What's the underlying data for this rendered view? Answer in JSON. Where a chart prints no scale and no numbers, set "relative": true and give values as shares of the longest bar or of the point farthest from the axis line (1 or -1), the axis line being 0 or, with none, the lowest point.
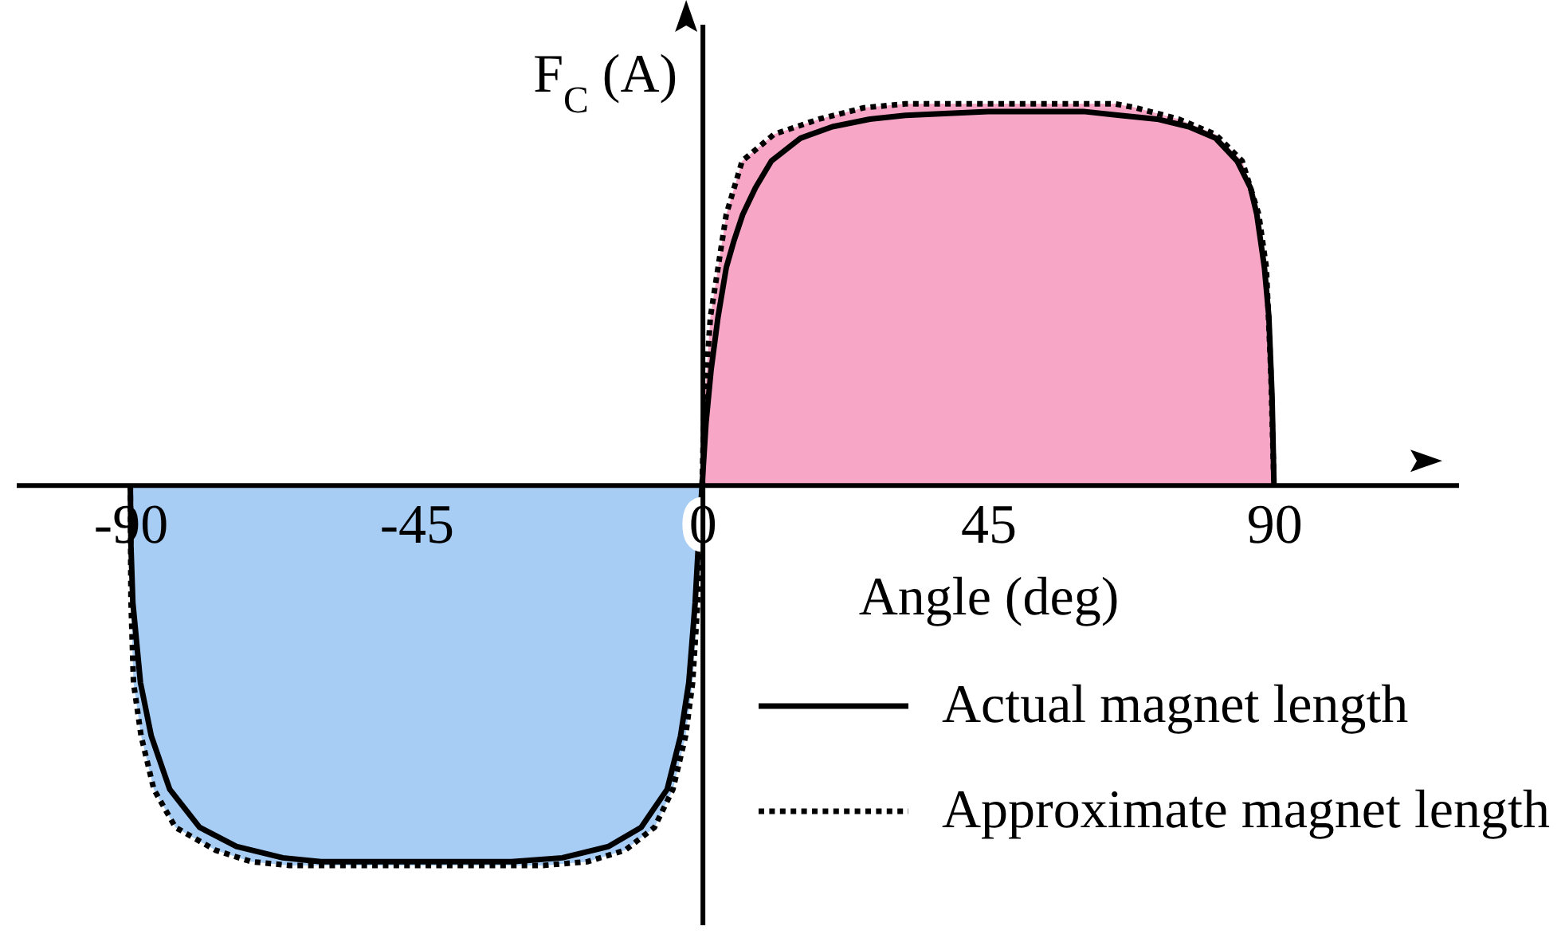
{
  "chart_data": {
    "type": "line",
    "xlabel": "Angle (deg)",
    "ylabel": "F$_{C}$ (A)",
    "relative": true,
    "xlim": [
      -108,
      119
    ],
    "xticks": [
      -90,
      -45,
      0,
      45,
      90
    ],
    "legend": "bottom right",
    "series": [
      {
        "type": "area",
        "color": "#f7a7c5",
        "x": [
          0,
          0.3,
          1.3,
          3.8,
          6.3,
          11.3,
          18.4,
          25.5,
          32,
          45,
          65,
          68.2,
          75,
          80.8,
          85,
          87.6,
          88.8,
          89.5,
          90
        ],
        "values": [
          0,
          0.2,
          0.44,
          0.71,
          0.85,
          0.92,
          0.96,
          0.99,
          1,
          1,
          1,
          0.99,
          0.96,
          0.92,
          0.85,
          0.71,
          0.57,
          0.3,
          0
        ]
      },
      {
        "type": "area",
        "color": "#a7cdf5",
        "x": [
          -90,
          -89.9,
          -89.5,
          -88.3,
          -86.3,
          -82.9,
          -76.6,
          -71,
          -65,
          -45,
          -25,
          -18,
          -12.1,
          -7.5,
          -4.6,
          -2.6,
          -1.5,
          -0.7,
          0
        ],
        "values": [
          0,
          -0.3,
          -0.52,
          -0.66,
          -0.8,
          -0.9,
          -0.96,
          -0.99,
          -1,
          -1,
          -1,
          -0.99,
          -0.96,
          -0.9,
          -0.8,
          -0.66,
          -0.52,
          -0.31,
          0
        ]
      },
      {
        "name": "Actual magnet length",
        "color": "#000000",
        "line_style": "solid",
        "x": [
          -90,
          -89.9,
          -89.6,
          -88.4,
          -86.7,
          -83.8,
          -79.1,
          -73.3,
          -66,
          -60,
          -45,
          -30,
          -22,
          -14.7,
          -9.6,
          -5.5,
          -3.4,
          -2.1,
          -1.1,
          -0.6,
          0,
          0.6,
          1.4,
          2.5,
          3.8,
          5,
          6.4,
          8.4,
          10.9,
          15.5,
          20.5,
          26.4,
          32,
          45,
          60,
          65.7,
          71.6,
          76.6,
          80.8,
          84.2,
          86.3,
          87.3,
          88.5,
          89.2,
          89.7,
          90
        ],
        "values": [
          0,
          -0.16,
          -0.31,
          -0.52,
          -0.66,
          -0.8,
          -0.9,
          -0.95,
          -0.98,
          -0.99,
          -0.99,
          -0.99,
          -0.98,
          -0.95,
          -0.9,
          -0.8,
          -0.66,
          -0.52,
          -0.31,
          -0.16,
          0,
          0.16,
          0.3,
          0.44,
          0.57,
          0.64,
          0.71,
          0.78,
          0.85,
          0.91,
          0.94,
          0.96,
          0.97,
          0.98,
          0.98,
          0.97,
          0.96,
          0.94,
          0.91,
          0.85,
          0.78,
          0.71,
          0.57,
          0.44,
          0.23,
          0
        ]
      },
      {
        "name": "Approximate magnet length",
        "color": "#000000",
        "line_style": "dotted",
        "x": [
          -90,
          -89.9,
          -89.5,
          -88.3,
          -86.3,
          -82.9,
          -76.6,
          -71,
          -65,
          -45,
          -25,
          -18,
          -12.1,
          -7.5,
          -4.6,
          -2.6,
          -1.5,
          -0.7,
          0,
          0.3,
          1.3,
          3.8,
          6.3,
          11.3,
          18.4,
          25.5,
          32,
          45,
          65,
          68.2,
          75,
          80.8,
          85,
          87.6,
          88.8,
          89.5,
          90
        ],
        "values": [
          0,
          -0.3,
          -0.52,
          -0.66,
          -0.8,
          -0.9,
          -0.96,
          -0.99,
          -1,
          -1,
          -1,
          -0.99,
          -0.96,
          -0.9,
          -0.8,
          -0.66,
          -0.52,
          -0.31,
          0,
          0.2,
          0.44,
          0.71,
          0.85,
          0.92,
          0.96,
          0.99,
          1,
          1,
          1,
          0.99,
          0.96,
          0.92,
          0.85,
          0.71,
          0.57,
          0.3,
          0
        ]
      }
    ]
  }
}
